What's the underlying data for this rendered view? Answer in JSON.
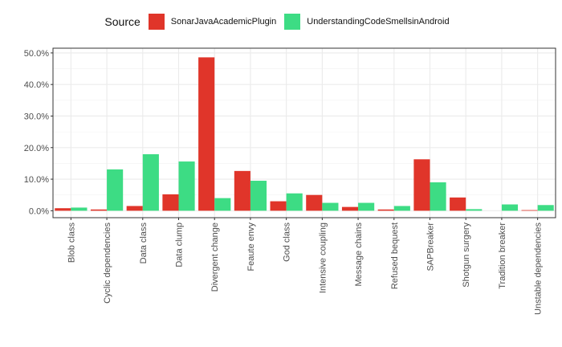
{
  "chart_data": {
    "type": "bar",
    "legend": {
      "title": "Source",
      "position": "top"
    },
    "categories": [
      "Blob class",
      "Cyclic dependencies",
      "Data class",
      "Data clump",
      "Divergent change",
      "Feaute envy",
      "God class",
      "Intensive coupling",
      "Message chains",
      "Refused bequest",
      "SAPBreaker",
      "Shotgun surgery",
      "Tradition breaker",
      "Unstable dependencies"
    ],
    "series": [
      {
        "name": "SonarJavaAcademicPlugin",
        "color": "#e0352a",
        "values": [
          0.8,
          0.4,
          1.5,
          5.2,
          48.6,
          12.6,
          3.0,
          5.0,
          1.2,
          0.4,
          16.3,
          4.2,
          0.0,
          0.2
        ]
      },
      {
        "name": "UnderstandingCodeSmellsinAndroid",
        "color": "#3ddc84",
        "values": [
          1.0,
          13.1,
          17.9,
          15.6,
          4.0,
          9.5,
          5.5,
          2.5,
          2.5,
          1.5,
          9.0,
          0.5,
          2.0,
          1.8
        ]
      }
    ],
    "y_ticks": [
      "0.0%",
      "10.0%",
      "20.0%",
      "30.0%",
      "40.0%",
      "50.0%"
    ],
    "ylim": [
      -2.2,
      51.5
    ],
    "grid": true
  }
}
